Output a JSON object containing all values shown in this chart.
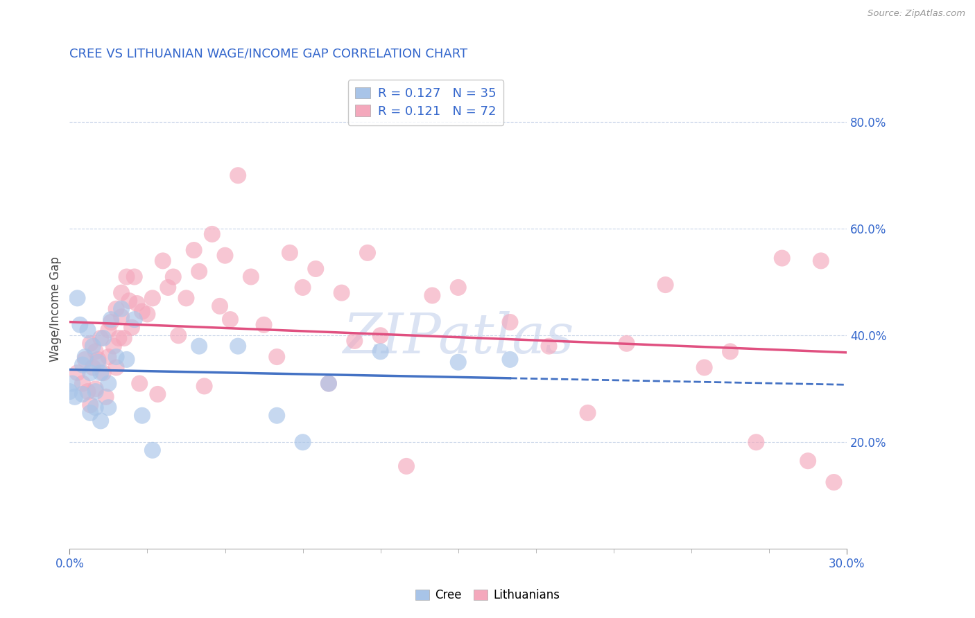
{
  "title": "CREE VS LITHUANIAN WAGE/INCOME GAP CORRELATION CHART",
  "source_text": "Source: ZipAtlas.com",
  "ylabel": "Wage/Income Gap",
  "xlim": [
    0.0,
    0.3
  ],
  "ylim": [
    0.0,
    0.9
  ],
  "xticklabels": [
    "0.0%",
    "30.0%"
  ],
  "yticks_right": [
    0.2,
    0.4,
    0.6,
    0.8
  ],
  "ytick_right_labels": [
    "20.0%",
    "40.0%",
    "60.0%",
    "80.0%"
  ],
  "cree_color": "#a8c4e8",
  "lithuanian_color": "#f4a8bc",
  "cree_line_color": "#4472c4",
  "lithuanian_line_color": "#e05080",
  "R_cree": 0.127,
  "N_cree": 35,
  "R_lithuanian": 0.121,
  "N_lithuanian": 72,
  "cree_scatter_x": [
    0.0,
    0.001,
    0.002,
    0.003,
    0.004,
    0.005,
    0.005,
    0.006,
    0.007,
    0.008,
    0.008,
    0.009,
    0.01,
    0.01,
    0.011,
    0.012,
    0.012,
    0.013,
    0.015,
    0.015,
    0.016,
    0.018,
    0.02,
    0.022,
    0.025,
    0.028,
    0.032,
    0.05,
    0.065,
    0.08,
    0.09,
    0.1,
    0.12,
    0.15,
    0.17
  ],
  "cree_scatter_y": [
    0.295,
    0.31,
    0.285,
    0.47,
    0.42,
    0.345,
    0.29,
    0.36,
    0.41,
    0.33,
    0.255,
    0.38,
    0.295,
    0.265,
    0.35,
    0.33,
    0.24,
    0.395,
    0.31,
    0.265,
    0.43,
    0.36,
    0.45,
    0.355,
    0.43,
    0.25,
    0.185,
    0.38,
    0.38,
    0.25,
    0.2,
    0.31,
    0.37,
    0.35,
    0.355
  ],
  "lithuanian_scatter_x": [
    0.003,
    0.005,
    0.006,
    0.007,
    0.008,
    0.008,
    0.009,
    0.01,
    0.01,
    0.011,
    0.012,
    0.013,
    0.014,
    0.015,
    0.015,
    0.016,
    0.017,
    0.018,
    0.018,
    0.019,
    0.02,
    0.02,
    0.021,
    0.022,
    0.023,
    0.024,
    0.025,
    0.026,
    0.027,
    0.028,
    0.03,
    0.032,
    0.034,
    0.036,
    0.038,
    0.04,
    0.042,
    0.045,
    0.048,
    0.05,
    0.052,
    0.055,
    0.058,
    0.06,
    0.062,
    0.065,
    0.07,
    0.075,
    0.08,
    0.085,
    0.09,
    0.095,
    0.1,
    0.105,
    0.11,
    0.115,
    0.12,
    0.13,
    0.14,
    0.15,
    0.17,
    0.185,
    0.2,
    0.215,
    0.23,
    0.245,
    0.255,
    0.265,
    0.275,
    0.285,
    0.29,
    0.295
  ],
  "lithuanian_scatter_y": [
    0.33,
    0.31,
    0.355,
    0.295,
    0.385,
    0.27,
    0.34,
    0.37,
    0.3,
    0.355,
    0.395,
    0.33,
    0.285,
    0.41,
    0.36,
    0.425,
    0.38,
    0.45,
    0.34,
    0.395,
    0.48,
    0.435,
    0.395,
    0.51,
    0.465,
    0.415,
    0.51,
    0.46,
    0.31,
    0.445,
    0.44,
    0.47,
    0.29,
    0.54,
    0.49,
    0.51,
    0.4,
    0.47,
    0.56,
    0.52,
    0.305,
    0.59,
    0.455,
    0.55,
    0.43,
    0.7,
    0.51,
    0.42,
    0.36,
    0.555,
    0.49,
    0.525,
    0.31,
    0.48,
    0.39,
    0.555,
    0.4,
    0.155,
    0.475,
    0.49,
    0.425,
    0.38,
    0.255,
    0.385,
    0.495,
    0.34,
    0.37,
    0.2,
    0.545,
    0.165,
    0.54,
    0.125
  ],
  "background_color": "#ffffff",
  "grid_color": "#c8d4e8",
  "watermark_text": "ZIPatlas",
  "watermark_color": "#ccd8ee"
}
